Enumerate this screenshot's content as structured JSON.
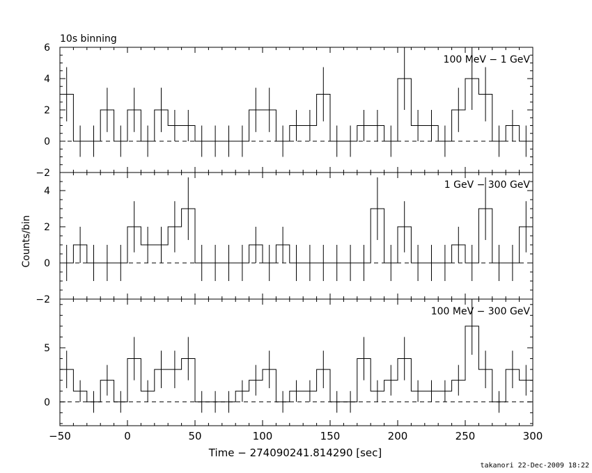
{
  "chart_data": {
    "type": "line",
    "subtitle": "10s binning",
    "ylabel": "Counts/bin",
    "xlabel": "Time − 274090241.814290 [sec]",
    "footer": "takanori 22-Dec-2009 18:22",
    "xlim": [
      -50,
      300
    ],
    "x_ticks": [
      -50,
      0,
      50,
      100,
      150,
      200,
      250,
      300
    ],
    "bin_width": 10,
    "bin_starts": [
      -50,
      -40,
      -30,
      -20,
      -10,
      0,
      10,
      20,
      30,
      40,
      50,
      60,
      70,
      80,
      90,
      100,
      110,
      120,
      130,
      140,
      150,
      160,
      170,
      180,
      190,
      200,
      210,
      220,
      230,
      240,
      250,
      260,
      270,
      280,
      290
    ],
    "panels": [
      {
        "name": "100 MeV − 1 GeV",
        "ylim": [
          -2,
          6
        ],
        "y_ticks": [
          -2,
          0,
          2,
          4,
          6
        ],
        "values": [
          3,
          0,
          0,
          2,
          0,
          2,
          0,
          2,
          1,
          1,
          0,
          0,
          0,
          0,
          2,
          2,
          0,
          1,
          1,
          3,
          0,
          0,
          1,
          1,
          0,
          4,
          1,
          1,
          0,
          2,
          4,
          3,
          0,
          1,
          0
        ]
      },
      {
        "name": "1 GeV − 300 GeV",
        "ylim": [
          -2,
          5
        ],
        "y_ticks": [
          -2,
          0,
          2,
          4
        ],
        "values": [
          0,
          1,
          0,
          0,
          0,
          2,
          1,
          1,
          2,
          3,
          0,
          0,
          0,
          0,
          1,
          0,
          1,
          0,
          0,
          0,
          0,
          0,
          0,
          3,
          0,
          2,
          0,
          0,
          0,
          1,
          0,
          3,
          0,
          0,
          2
        ]
      },
      {
        "name": "100 MeV − 300 GeV",
        "ylim": [
          -2.2,
          9.5
        ],
        "y_ticks": [
          0,
          5
        ],
        "values": [
          3,
          1,
          0,
          2,
          0,
          4,
          1,
          3,
          3,
          4,
          0,
          0,
          0,
          1,
          2,
          3,
          0,
          1,
          1,
          3,
          0,
          0,
          4,
          1,
          2,
          4,
          1,
          1,
          1,
          2,
          7,
          3,
          0,
          3,
          2
        ]
      }
    ]
  }
}
